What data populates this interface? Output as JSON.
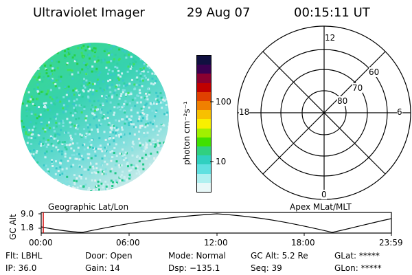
{
  "header": {
    "title": "Ultraviolet Imager",
    "date": "29 Aug 07",
    "time": "00:15:11 UT"
  },
  "colorbar": {
    "label": "photon cm⁻²s⁻¹",
    "tick_100": "100",
    "tick_10": "10",
    "colors": [
      "#101040",
      "#3a0050",
      "#8a0030",
      "#c00000",
      "#e04000",
      "#f08000",
      "#f8c000",
      "#f8f000",
      "#a0f000",
      "#40e000",
      "#30d080",
      "#30d0c0",
      "#60e0e0",
      "#b0f0f0",
      "#e8f8f8"
    ]
  },
  "polar": {
    "label_12": "12",
    "label_0": "0",
    "label_18": "18",
    "label_6": "6",
    "label_60": "60",
    "label_70": "70",
    "label_80": "80"
  },
  "timeline": {
    "ylabel": "GC Alt",
    "y_top": "9.0",
    "y_bottom": "1.8",
    "left_caption": "Geographic Lat/Lon",
    "right_caption": "Apex MLat/MLT",
    "ticks": [
      "00:00",
      "06:00",
      "12:00",
      "18:00",
      "23:59"
    ]
  },
  "info": {
    "flt": "Flt: LBHL",
    "ip": "IP: 36.0",
    "door": "Door: Open",
    "gain": "Gain: 14",
    "mode": "Mode: Normal",
    "dsp": "Dsp: −135.1",
    "gcalt": "GC Alt: 5.2 Re",
    "seq": "Seq: 39",
    "glat": "GLat: *****",
    "glon": "GLon: *****"
  }
}
